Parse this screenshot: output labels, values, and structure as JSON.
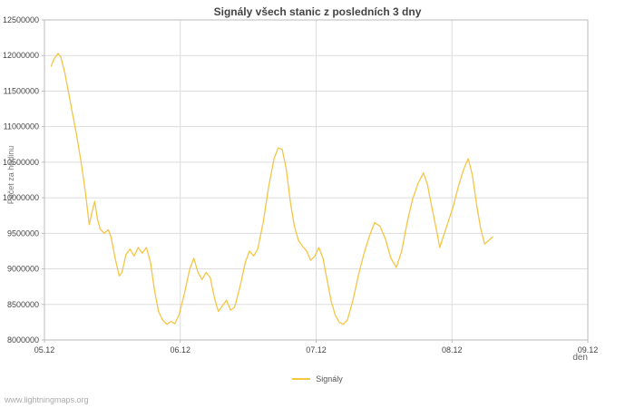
{
  "page": {
    "footer": "www.lightningmaps.org"
  },
  "chart_data": {
    "type": "line",
    "title": "Signály všech stanic z posledních 3 dny",
    "ylabel": "Počet za hodinu",
    "xlabel": "den",
    "grid": true,
    "x_range": [
      0,
      4
    ],
    "y_range": [
      8000000,
      12500000
    ],
    "x_ticks": [
      {
        "pos": 0,
        "label": "05.12"
      },
      {
        "pos": 1,
        "label": "06.12"
      },
      {
        "pos": 2,
        "label": "07.12"
      },
      {
        "pos": 3,
        "label": "08.12"
      },
      {
        "pos": 4,
        "label": "09.12"
      }
    ],
    "y_ticks": [
      {
        "value": 8000000,
        "label": "8000000"
      },
      {
        "value": 8500000,
        "label": "8500000"
      },
      {
        "value": 9000000,
        "label": "9000000"
      },
      {
        "value": 9500000,
        "label": "9500000"
      },
      {
        "value": 10000000,
        "label": "10000000"
      },
      {
        "value": 10500000,
        "label": "10500000"
      },
      {
        "value": 11000000,
        "label": "11000000"
      },
      {
        "value": 11500000,
        "label": "11500000"
      },
      {
        "value": 12000000,
        "label": "12000000"
      },
      {
        "value": 12500000,
        "label": "12500000"
      }
    ],
    "legend": {
      "position": "bottom",
      "entries": [
        {
          "label": "Signály",
          "color": "#f6c546"
        }
      ]
    },
    "colors": {
      "line": "#f6c546",
      "grid": "#dddddd",
      "border": "#bbbbbb",
      "tick_text": "#444444"
    },
    "series": [
      {
        "name": "Signály",
        "color": "#f6c546",
        "points": [
          [
            0.05,
            11850000
          ],
          [
            0.07,
            11950000
          ],
          [
            0.1,
            12030000
          ],
          [
            0.12,
            11980000
          ],
          [
            0.15,
            11750000
          ],
          [
            0.18,
            11450000
          ],
          [
            0.21,
            11150000
          ],
          [
            0.24,
            10850000
          ],
          [
            0.27,
            10500000
          ],
          [
            0.3,
            10100000
          ],
          [
            0.33,
            9620000
          ],
          [
            0.35,
            9800000
          ],
          [
            0.37,
            9950000
          ],
          [
            0.39,
            9700000
          ],
          [
            0.41,
            9560000
          ],
          [
            0.44,
            9500000
          ],
          [
            0.47,
            9550000
          ],
          [
            0.49,
            9450000
          ],
          [
            0.52,
            9150000
          ],
          [
            0.55,
            8900000
          ],
          [
            0.57,
            8950000
          ],
          [
            0.6,
            9200000
          ],
          [
            0.63,
            9280000
          ],
          [
            0.66,
            9180000
          ],
          [
            0.69,
            9300000
          ],
          [
            0.72,
            9220000
          ],
          [
            0.75,
            9300000
          ],
          [
            0.78,
            9100000
          ],
          [
            0.81,
            8700000
          ],
          [
            0.84,
            8400000
          ],
          [
            0.87,
            8280000
          ],
          [
            0.9,
            8220000
          ],
          [
            0.93,
            8260000
          ],
          [
            0.96,
            8230000
          ],
          [
            0.99,
            8350000
          ],
          [
            1.03,
            8650000
          ],
          [
            1.07,
            9000000
          ],
          [
            1.1,
            9150000
          ],
          [
            1.13,
            8950000
          ],
          [
            1.16,
            8850000
          ],
          [
            1.19,
            8950000
          ],
          [
            1.22,
            8880000
          ],
          [
            1.25,
            8600000
          ],
          [
            1.28,
            8400000
          ],
          [
            1.31,
            8480000
          ],
          [
            1.34,
            8560000
          ],
          [
            1.37,
            8420000
          ],
          [
            1.4,
            8460000
          ],
          [
            1.44,
            8750000
          ],
          [
            1.48,
            9100000
          ],
          [
            1.51,
            9250000
          ],
          [
            1.54,
            9180000
          ],
          [
            1.57,
            9280000
          ],
          [
            1.61,
            9650000
          ],
          [
            1.65,
            10150000
          ],
          [
            1.69,
            10550000
          ],
          [
            1.72,
            10700000
          ],
          [
            1.75,
            10680000
          ],
          [
            1.78,
            10400000
          ],
          [
            1.81,
            9950000
          ],
          [
            1.84,
            9600000
          ],
          [
            1.87,
            9400000
          ],
          [
            1.9,
            9320000
          ],
          [
            1.93,
            9250000
          ],
          [
            1.96,
            9120000
          ],
          [
            1.99,
            9180000
          ],
          [
            2.02,
            9300000
          ],
          [
            2.05,
            9150000
          ],
          [
            2.08,
            8850000
          ],
          [
            2.11,
            8550000
          ],
          [
            2.14,
            8350000
          ],
          [
            2.17,
            8250000
          ],
          [
            2.2,
            8220000
          ],
          [
            2.23,
            8280000
          ],
          [
            2.27,
            8550000
          ],
          [
            2.31,
            8900000
          ],
          [
            2.35,
            9200000
          ],
          [
            2.39,
            9450000
          ],
          [
            2.43,
            9650000
          ],
          [
            2.47,
            9600000
          ],
          [
            2.51,
            9420000
          ],
          [
            2.55,
            9150000
          ],
          [
            2.59,
            9020000
          ],
          [
            2.63,
            9250000
          ],
          [
            2.67,
            9650000
          ],
          [
            2.71,
            9980000
          ],
          [
            2.75,
            10200000
          ],
          [
            2.79,
            10350000
          ],
          [
            2.82,
            10180000
          ],
          [
            2.85,
            9880000
          ],
          [
            2.88,
            9600000
          ],
          [
            2.91,
            9300000
          ],
          [
            2.94,
            9480000
          ],
          [
            2.97,
            9650000
          ],
          [
            3.01,
            9880000
          ],
          [
            3.05,
            10180000
          ],
          [
            3.09,
            10420000
          ],
          [
            3.12,
            10550000
          ],
          [
            3.15,
            10320000
          ],
          [
            3.18,
            9920000
          ],
          [
            3.21,
            9580000
          ],
          [
            3.24,
            9350000
          ],
          [
            3.27,
            9400000
          ],
          [
            3.3,
            9450000
          ]
        ]
      }
    ]
  }
}
